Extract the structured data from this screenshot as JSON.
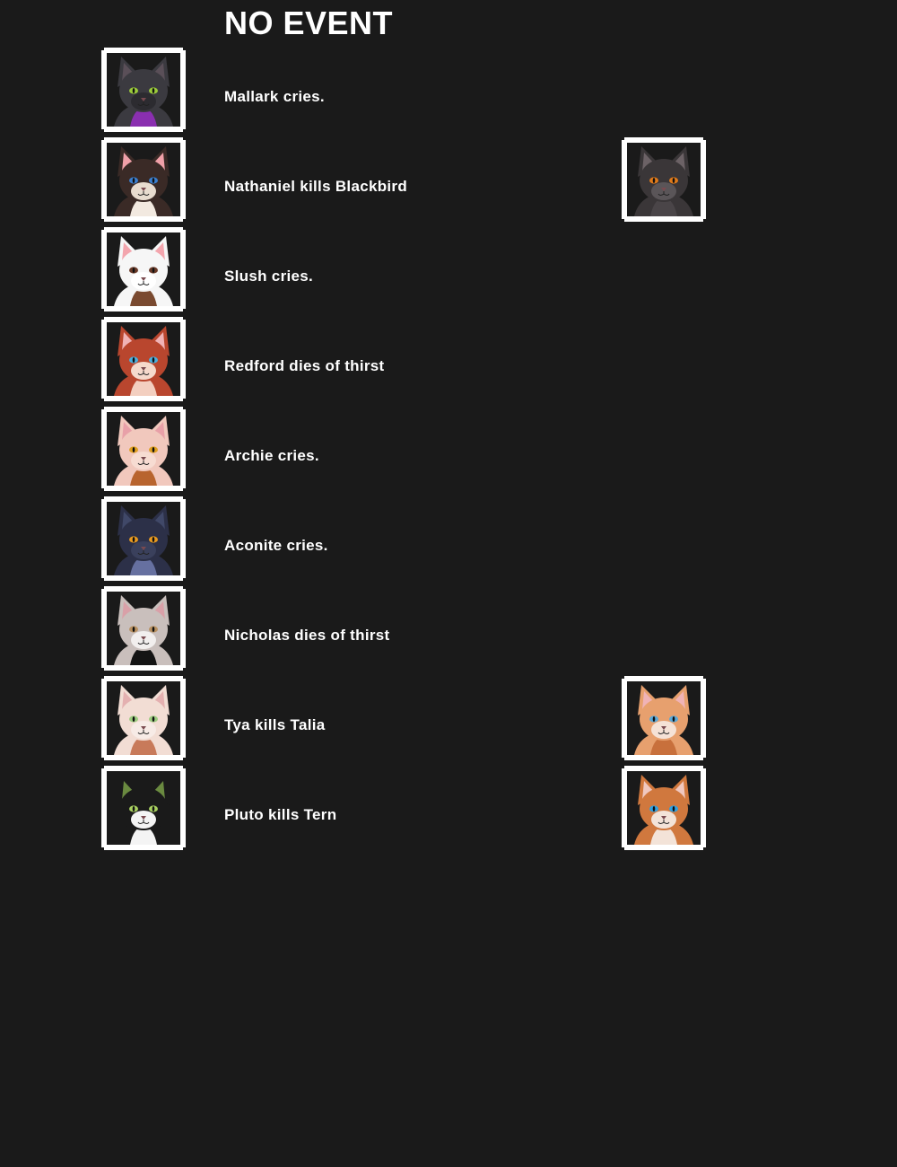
{
  "header": {
    "title": "NO EVENT"
  },
  "events": [
    {
      "text": "Mallark cries.",
      "actor": {
        "fur": "#3b3a40",
        "ear_inner": "#5a4f58",
        "eyes": "#9ccc3a",
        "accent": "#8a2fb0",
        "muzzle": "#2c2b30"
      },
      "target": null
    },
    {
      "text": "Nathaniel kills Blackbird",
      "actor": {
        "fur": "#3a2a26",
        "ear_inner": "#f0a0a8",
        "eyes": "#3a7fd0",
        "accent": "#f2e9e0",
        "muzzle": "#e8dccf"
      },
      "target": {
        "fur": "#3a3638",
        "ear_inner": "#6c6266",
        "eyes": "#e07a1a",
        "accent": "#4a4548",
        "muzzle": "#5a5558"
      }
    },
    {
      "text": "Slush cries.",
      "actor": {
        "fur": "#f6f6f6",
        "ear_inner": "#f3a5ad",
        "eyes": "#6a3a28",
        "accent": "#7a4a30",
        "muzzle": "#ffffff"
      },
      "target": null
    },
    {
      "text": "Redford dies of thirst",
      "actor": {
        "fur": "#b9462e",
        "ear_inner": "#f0b3b6",
        "eyes": "#4ab0e0",
        "accent": "#f3cfc0",
        "muzzle": "#f5d9cc"
      },
      "target": null
    },
    {
      "text": "Archie cries.",
      "actor": {
        "fur": "#f1c8bd",
        "ear_inner": "#e8a0a8",
        "eyes": "#e0a020",
        "accent": "#b8642e",
        "muzzle": "#f7dcd2"
      },
      "target": null
    },
    {
      "text": "Aconite cries.",
      "actor": {
        "fur": "#2c3048",
        "ear_inner": "#404868",
        "eyes": "#e89a20",
        "accent": "#6670a0",
        "muzzle": "#3a405c"
      },
      "target": null
    },
    {
      "text": "Nicholas dies of thirst",
      "actor": {
        "fur": "#c9bfbc",
        "ear_inner": "#d9a0a8",
        "eyes": "#b89060",
        "accent": "#141414",
        "muzzle": "#f2efee"
      },
      "target": null
    },
    {
      "text": "Tya kills Talia",
      "actor": {
        "fur": "#f2ddd4",
        "ear_inner": "#e4b0b0",
        "eyes": "#9ccc80",
        "accent": "#c87a5a",
        "muzzle": "#f7ebe6"
      },
      "target": {
        "fur": "#e7a06e",
        "ear_inner": "#f0b3b6",
        "eyes": "#5aa8d8",
        "accent": "#c8703c",
        "muzzle": "#f5e2d6"
      }
    },
    {
      "text": "Pluto kills Tern",
      "actor": {
        "fur": "#1a1a1a",
        "ear_inner": "#6a8a40",
        "eyes": "#a8d060",
        "accent": "#f4f4f4",
        "muzzle": "#f4f4f4"
      },
      "target": {
        "fur": "#d0783e",
        "ear_inner": "#f0c8c0",
        "eyes": "#30a0e0",
        "accent": "#f3e3d8",
        "muzzle": "#f3e3d8"
      }
    }
  ]
}
